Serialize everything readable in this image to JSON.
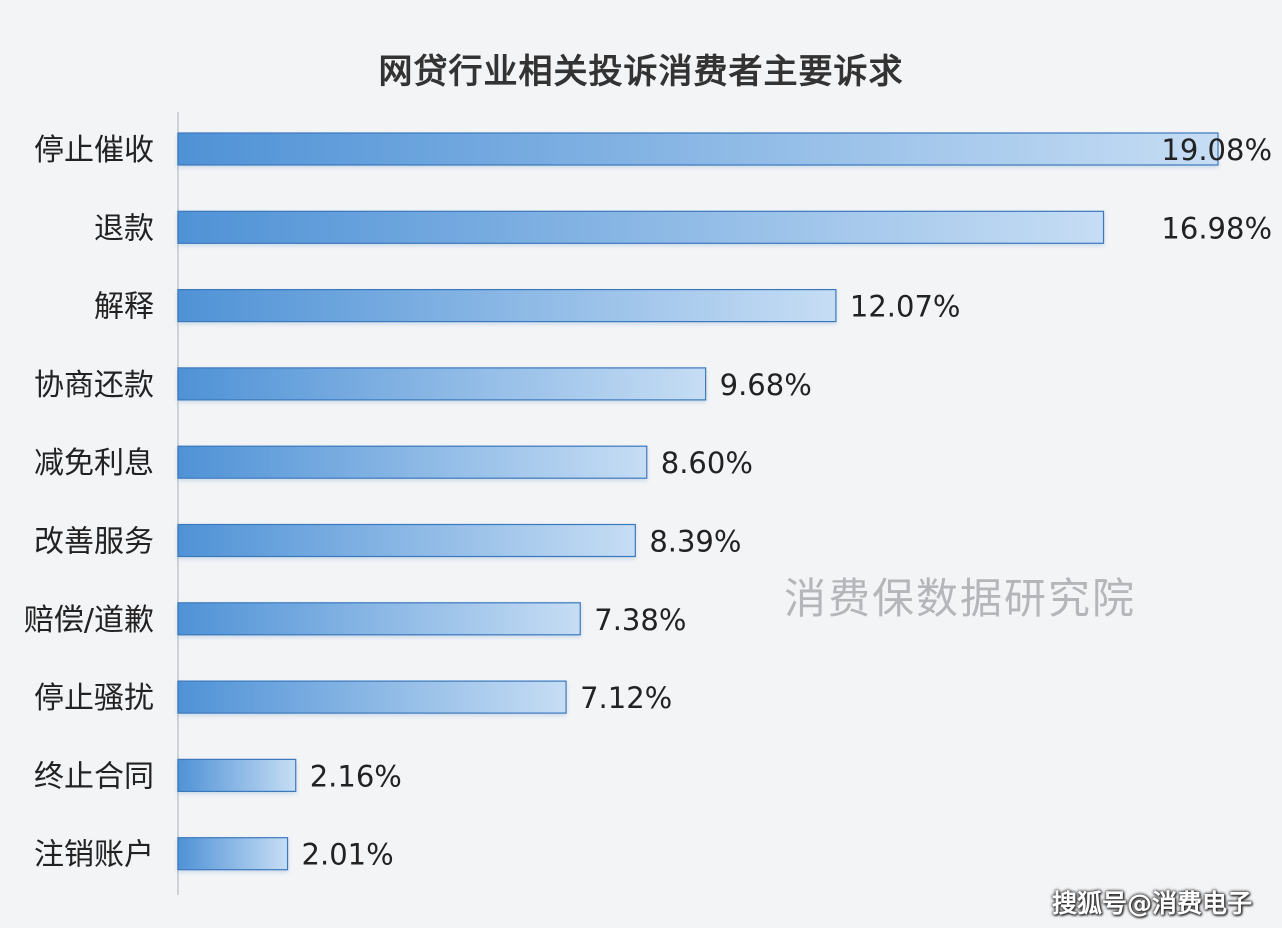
{
  "title": "网贷行业相关投诉消费者主要诉求",
  "watermark": "消费保数据研究院",
  "credit": "搜狐号@消费电子",
  "chart_data": {
    "type": "bar",
    "orientation": "horizontal",
    "title": "网贷行业相关投诉消费者主要诉求",
    "xlabel": "",
    "ylabel": "",
    "xlim": [
      0,
      19.08
    ],
    "grid": false,
    "legend": "none",
    "categories": [
      "停止催收",
      "退款",
      "解释",
      "协商还款",
      "减免利息",
      "改善服务",
      "赔偿/道歉",
      "停止骚扰",
      "终止合同",
      "注销账户"
    ],
    "values": [
      19.08,
      16.98,
      12.07,
      9.68,
      8.6,
      8.39,
      7.38,
      7.12,
      2.16,
      2.01
    ],
    "value_labels": [
      "19.08%",
      "16.98%",
      "12.07%",
      "9.68%",
      "8.60%",
      "8.39%",
      "7.38%",
      "7.12%",
      "2.16%",
      "2.01%"
    ],
    "colors": {
      "bar_start": "#4f92d6",
      "bar_end": "#c6ddf4",
      "bar_stroke": "#3b79bd",
      "axis": "#cfd3d8",
      "text": "#222222"
    }
  }
}
